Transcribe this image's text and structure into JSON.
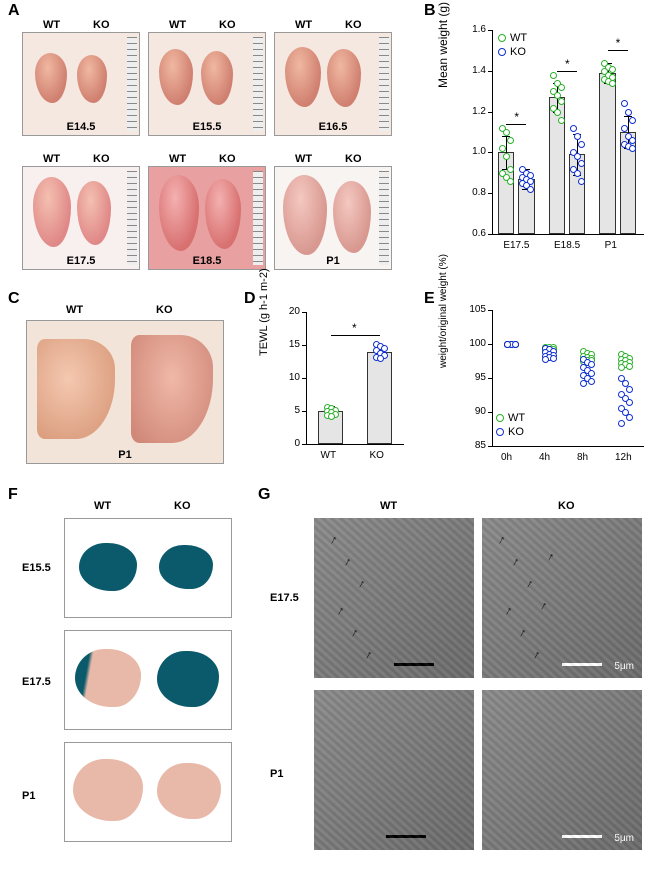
{
  "colors": {
    "wt": "#2bb02b",
    "ko": "#1030d0",
    "bar_fill": "#e5e5e5",
    "bar_border": "#333333",
    "axis": "#000000",
    "skin_bg": "#f3e4da",
    "sem_bg": "#7a7a7a",
    "dye_blue": "#0b5a6b",
    "dye_pink": "#e8b8a8"
  },
  "typography": {
    "panel_label_pt": 16,
    "axis_label_pt": 12,
    "tick_pt": 10,
    "sub_label_pt": 11
  },
  "panels": {
    "A": {
      "label": "A",
      "cols": [
        "WT",
        "KO"
      ],
      "stages": [
        "E14.5",
        "E15.5",
        "E16.5",
        "E17.5",
        "E18.5",
        "P1"
      ]
    },
    "B": {
      "label": "B",
      "type": "bar_scatter",
      "title_y": "Mean weight (g)",
      "legend": [
        "WT",
        "KO"
      ],
      "categories": [
        "E17.5",
        "E18.5",
        "P1"
      ],
      "ylim": [
        0.6,
        1.6
      ],
      "ytick_step": 0.2,
      "bars": {
        "WT": [
          1.0,
          1.27,
          1.39
        ],
        "KO": [
          0.87,
          0.99,
          1.1
        ]
      },
      "err": {
        "WT": [
          0.08,
          0.07,
          0.05
        ],
        "KO": [
          0.05,
          0.1,
          0.08
        ]
      },
      "points": {
        "WT": [
          [
            1.12,
            1.1,
            1.06,
            1.02,
            0.98,
            0.92,
            0.9,
            0.88,
            0.86
          ],
          [
            1.38,
            1.34,
            1.32,
            1.3,
            1.28,
            1.25,
            1.22,
            1.2,
            1.16
          ],
          [
            1.44,
            1.42,
            1.41,
            1.4,
            1.38,
            1.37,
            1.36,
            1.35,
            1.34
          ]
        ],
        "KO": [
          [
            0.92,
            0.9,
            0.89,
            0.88,
            0.87,
            0.86,
            0.85,
            0.84,
            0.82
          ],
          [
            1.12,
            1.08,
            1.04,
            1.0,
            0.98,
            0.95,
            0.92,
            0.9,
            0.86
          ],
          [
            1.24,
            1.2,
            1.16,
            1.12,
            1.08,
            1.06,
            1.04,
            1.03,
            1.02
          ]
        ]
      },
      "significance": [
        "*",
        "*",
        "*"
      ]
    },
    "C": {
      "label": "C",
      "cols": [
        "WT",
        "KO"
      ],
      "stage": "P1"
    },
    "D": {
      "label": "D",
      "type": "bar_scatter",
      "title_y": "TEWL (g h-1 m-2)",
      "categories": [
        "WT",
        "KO"
      ],
      "ylim": [
        0,
        20
      ],
      "ytick_step": 5,
      "bars": {
        "WT": [
          5
        ],
        "KO": [
          14
        ]
      },
      "err": {
        "WT": [
          0.7
        ],
        "KO": [
          1.0
        ]
      },
      "points": {
        "WT": [
          [
            5.6,
            5.4,
            5.2,
            5.0,
            4.8,
            4.6,
            4.4,
            4.2
          ]
        ],
        "KO": [
          [
            15.2,
            14.8,
            14.5,
            14.2,
            13.8,
            13.5,
            13.2,
            13.0
          ]
        ]
      },
      "significance": [
        "*"
      ]
    },
    "E": {
      "label": "E",
      "type": "scatter_series",
      "title_y": "weight/original weight (%)",
      "legend": [
        "WT",
        "KO"
      ],
      "categories": [
        "0h",
        "4h",
        "8h",
        "12h"
      ],
      "ylim": [
        85,
        105
      ],
      "ytick_step": 5,
      "points": {
        "WT": [
          [
            100,
            100,
            100,
            100,
            100,
            100,
            100,
            100,
            100,
            100
          ],
          [
            99.6,
            99.5,
            99.5,
            99.4,
            99.3,
            99.2,
            99.2,
            99.1,
            99.0,
            98.9
          ],
          [
            98.9,
            98.7,
            98.5,
            98.3,
            98.1,
            97.9,
            97.8,
            97.7,
            97.6,
            97.5
          ],
          [
            98.6,
            98.3,
            98.0,
            97.8,
            97.6,
            97.4,
            97.2,
            97.0,
            96.8,
            96.6
          ]
        ],
        "KO": [
          [
            100,
            100,
            100,
            100,
            100,
            100,
            100,
            100,
            100,
            100
          ],
          [
            99.4,
            99.2,
            99.0,
            98.8,
            98.6,
            98.4,
            98.2,
            98.1,
            98.0,
            97.8
          ],
          [
            97.8,
            97.4,
            97.0,
            96.6,
            96.2,
            95.8,
            95.4,
            95.0,
            94.6,
            94.2
          ],
          [
            95.0,
            94.2,
            93.4,
            92.6,
            92.0,
            91.4,
            90.6,
            90.0,
            89.2,
            88.4
          ]
        ]
      }
    },
    "F": {
      "label": "F",
      "cols": [
        "WT",
        "KO"
      ],
      "rows": [
        "E15.5",
        "E17.5",
        "P1"
      ],
      "dye": {
        "E15.5": {
          "WT": "blue",
          "KO": "blue"
        },
        "E17.5": {
          "WT": "pink_head_blue",
          "KO": "blue"
        },
        "P1": {
          "WT": "pink",
          "KO": "pink"
        }
      }
    },
    "G": {
      "label": "G",
      "cols": [
        "WT",
        "KO"
      ],
      "rows": [
        "E17.5",
        "P1"
      ],
      "scale_label": "5μm",
      "arrows_E17.5_WT": 6,
      "arrows_E17.5_KO": 8
    }
  }
}
